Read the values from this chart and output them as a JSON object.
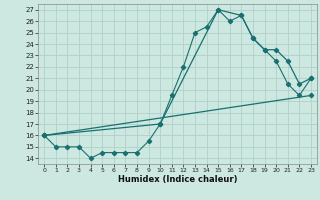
{
  "xlabel": "Humidex (Indice chaleur)",
  "bg_color": "#cce8e0",
  "grid_color": "#b0d0c8",
  "line_color": "#1a7070",
  "xlim": [
    -0.5,
    23.5
  ],
  "ylim": [
    13.5,
    27.5
  ],
  "yticks": [
    14,
    15,
    16,
    17,
    18,
    19,
    20,
    21,
    22,
    23,
    24,
    25,
    26,
    27
  ],
  "xticks": [
    0,
    1,
    2,
    3,
    4,
    5,
    6,
    7,
    8,
    9,
    10,
    11,
    12,
    13,
    14,
    15,
    16,
    17,
    18,
    19,
    20,
    21,
    22,
    23
  ],
  "line1_x": [
    0,
    1,
    2,
    3,
    4,
    5,
    6,
    7,
    8,
    9,
    10,
    11,
    12,
    13,
    14,
    15,
    16,
    17,
    18,
    19,
    20,
    21,
    22,
    23
  ],
  "line1_y": [
    16,
    15,
    15,
    15,
    14,
    14.5,
    14.5,
    14.5,
    14.5,
    15.5,
    17,
    19.5,
    22,
    25,
    25.5,
    27,
    26,
    26.5,
    24.5,
    23.5,
    22.5,
    20.5,
    19.5,
    21
  ],
  "line2_x": [
    0,
    10,
    15,
    17,
    18,
    19,
    20,
    21,
    22,
    23
  ],
  "line2_y": [
    16,
    17,
    27,
    26.5,
    24.5,
    23.5,
    23.5,
    22.5,
    20.5,
    21
  ],
  "line3_x": [
    0,
    23
  ],
  "line3_y": [
    16,
    19.5
  ]
}
